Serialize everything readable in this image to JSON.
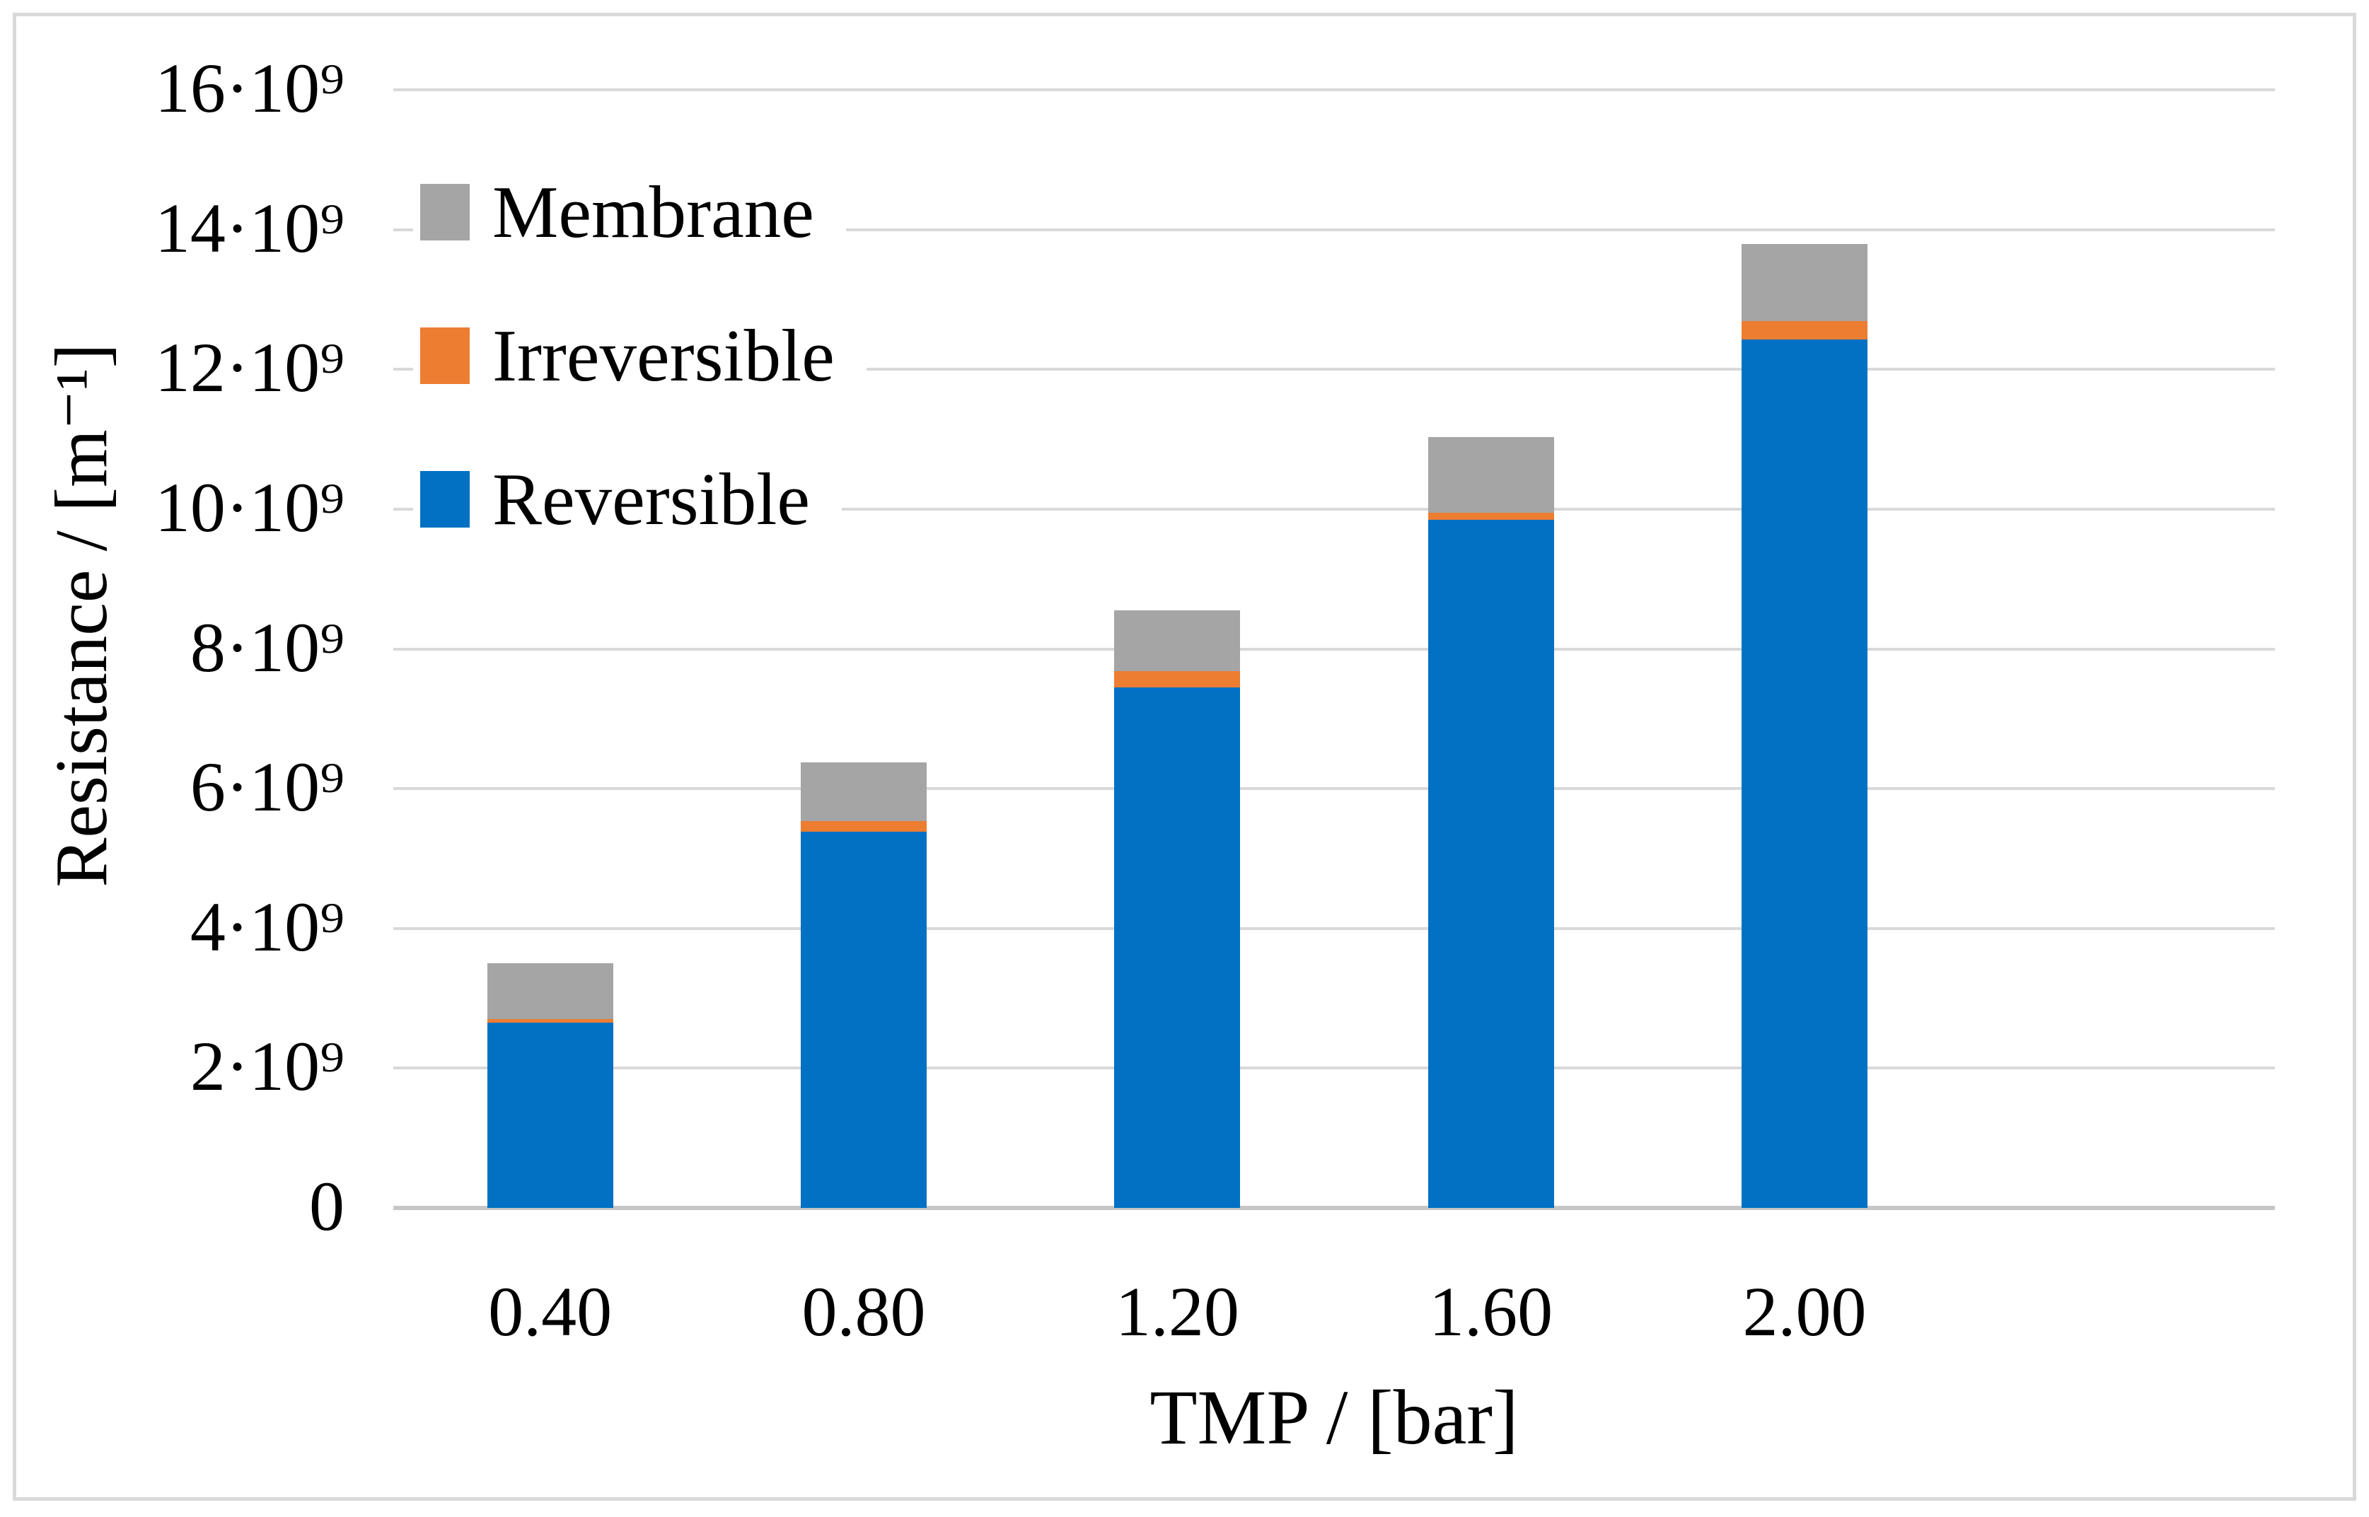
{
  "figure": {
    "background": "#ffffff",
    "frame_color": "#d9d9d9"
  },
  "chart_data": {
    "type": "bar",
    "stacked": true,
    "title": "",
    "xlabel": "TMP / [bar]",
    "ylabel": "Resistance / [m⁻¹]",
    "categories": [
      "0.40",
      "0.80",
      "1.20",
      "1.60",
      "2.00"
    ],
    "series": [
      {
        "name": "Reversible",
        "color": "#0271c3",
        "values": [
          2650000000.0,
          5380000000.0,
          7450000000.0,
          9850000000.0,
          12430000000.0
        ]
      },
      {
        "name": "Irreversible",
        "color": "#ed7d31",
        "values": [
          50000000.0,
          160000000.0,
          230000000.0,
          100000000.0,
          260000000.0
        ]
      },
      {
        "name": "Membrane",
        "color": "#a5a5a5",
        "values": [
          800000000.0,
          840000000.0,
          870000000.0,
          1080000000.0,
          1100000000.0
        ]
      }
    ],
    "totals": [
      3500000000.0,
      6380000000.0,
      8550000000.0,
      11030000000.0,
      13790000000.0
    ],
    "ylim": [
      0,
      16000000000.0
    ],
    "yticks": {
      "values": [
        0,
        2000000000.0,
        4000000000.0,
        6000000000.0,
        8000000000.0,
        10000000000.0,
        12000000000.0,
        14000000000.0,
        16000000000.0
      ],
      "labels": [
        "0",
        "2·10⁹",
        "4·10⁹",
        "6·10⁹",
        "8·10⁹",
        "10·10⁹",
        "12·10⁹",
        "14·10⁹",
        "16·10⁹"
      ]
    },
    "legend": {
      "position": "inside-top-left",
      "items": [
        {
          "label": "Membrane",
          "color": "#a5a5a5"
        },
        {
          "label": "Irreversible",
          "color": "#ed7d31"
        },
        {
          "label": "Reversible",
          "color": "#0271c3"
        }
      ]
    },
    "grid": "horizontal",
    "gridline_color": "#d9d9d9",
    "axis_line_color": "#c6c6c6",
    "text_color": "#000000"
  }
}
